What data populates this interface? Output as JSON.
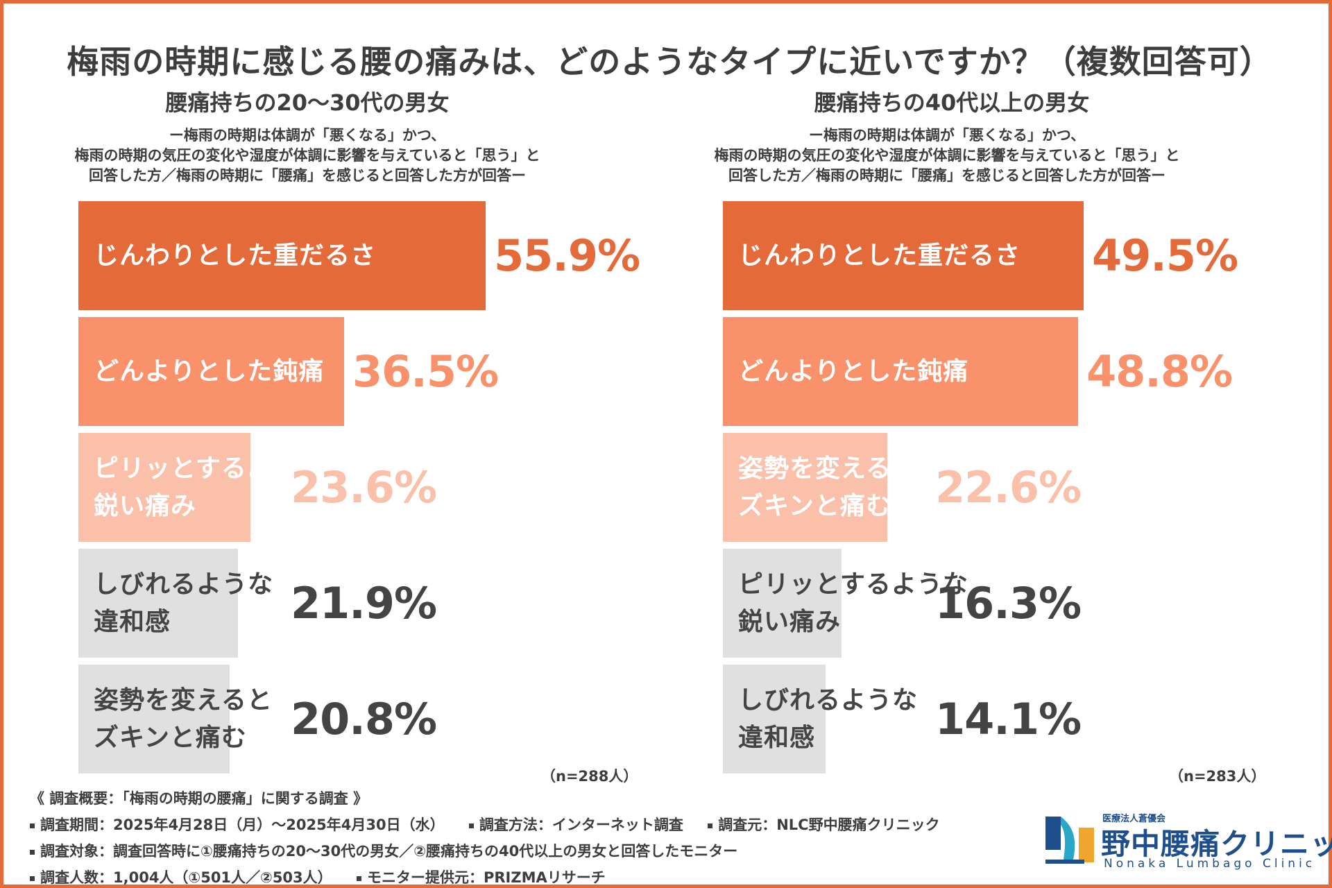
{
  "title": "梅雨の時期に感じる腰の痛みは、どのようなタイプに近いですか？（複数回答可）",
  "colors": {
    "border": "#e46a3a",
    "rank1": "#e46a3a",
    "rank2": "#f9926a",
    "rank3": "#fbc0aa",
    "rest": "#e0e0e0",
    "text_dark": "#444444",
    "brand": "#1f4e8c"
  },
  "panels": [
    {
      "title": "腰痛持ちの20〜30代の男女",
      "subtitle_lines": [
        "ー梅雨の時期は体調が「悪くなる」かつ、",
        "梅雨の時期の気圧の変化や湿度が体調に影響を与えていると「思う」と",
        "回答した方／梅雨の時期に「腰痛」を感じると回答した方が回答ー"
      ],
      "n": "（n=288人）"
    },
    {
      "title": "腰痛持ちの40代以上の男女",
      "subtitle_lines": [
        "ー梅雨の時期は体調が「悪くなる」かつ、",
        "梅雨の時期の気圧の変化や湿度が体調に影響を与えていると「思う」と",
        "回答した方／梅雨の時期に「腰痛」を感じると回答した方が回答ー"
      ],
      "n": "（n=283人）"
    }
  ],
  "chart_data": [
    {
      "type": "bar",
      "orientation": "horizontal",
      "title": "腰痛持ちの20〜30代の男女",
      "unit": "%",
      "xlim": [
        0,
        100
      ],
      "bars": [
        {
          "label": [
            "じんわりとした重だるさ"
          ],
          "value": 55.9,
          "value_label": "55.9%",
          "rank": 1
        },
        {
          "label": [
            "どんよりとした鈍痛"
          ],
          "value": 36.5,
          "value_label": "36.5%",
          "rank": 2
        },
        {
          "label": [
            "ピリッとするような",
            "鋭い痛み"
          ],
          "value": 23.6,
          "value_label": "23.6%",
          "rank": 3
        },
        {
          "label": [
            "しびれるような",
            "違和感"
          ],
          "value": 21.9,
          "value_label": "21.9%",
          "rank": 4
        },
        {
          "label": [
            "姿勢を変えると",
            "ズキンと痛む"
          ],
          "value": 20.8,
          "value_label": "20.8%",
          "rank": 5
        }
      ]
    },
    {
      "type": "bar",
      "orientation": "horizontal",
      "title": "腰痛持ちの40代以上の男女",
      "unit": "%",
      "xlim": [
        0,
        100
      ],
      "bars": [
        {
          "label": [
            "じんわりとした重だるさ"
          ],
          "value": 49.5,
          "value_label": "49.5%",
          "rank": 1
        },
        {
          "label": [
            "どんよりとした鈍痛"
          ],
          "value": 48.8,
          "value_label": "48.8%",
          "rank": 2
        },
        {
          "label": [
            "姿勢を変えると",
            "ズキンと痛む"
          ],
          "value": 22.6,
          "value_label": "22.6%",
          "rank": 3
        },
        {
          "label": [
            "ピリッとするような",
            "鋭い痛み"
          ],
          "value": 16.3,
          "value_label": "16.3%",
          "rank": 4
        },
        {
          "label": [
            "しびれるような",
            "違和感"
          ],
          "value": 14.1,
          "value_label": "14.1%",
          "rank": 5
        }
      ]
    }
  ],
  "footer": {
    "heading": "《 調査概要：「梅雨の時期の腰痛」に関する調査 》",
    "line1": [
      "調査期間：2025年4月28日（月）〜2025年4月30日（水）",
      "調査方法：インターネット調査",
      "調査元：NLC野中腰痛クリニック"
    ],
    "line2": [
      "調査対象：調査回答時に①腰痛持ちの20〜30代の男女／②腰痛持ちの40代以上の男女と回答したモニター"
    ],
    "line3": [
      "調査人数：1,004人（①501人／②503人）",
      "モニター提供元：PRIZMAリサーチ"
    ]
  },
  "logo": {
    "small": "医療法人蒼優会",
    "name": "野中腰痛クリニック",
    "english": "Nonaka Lumbago Clinic"
  }
}
